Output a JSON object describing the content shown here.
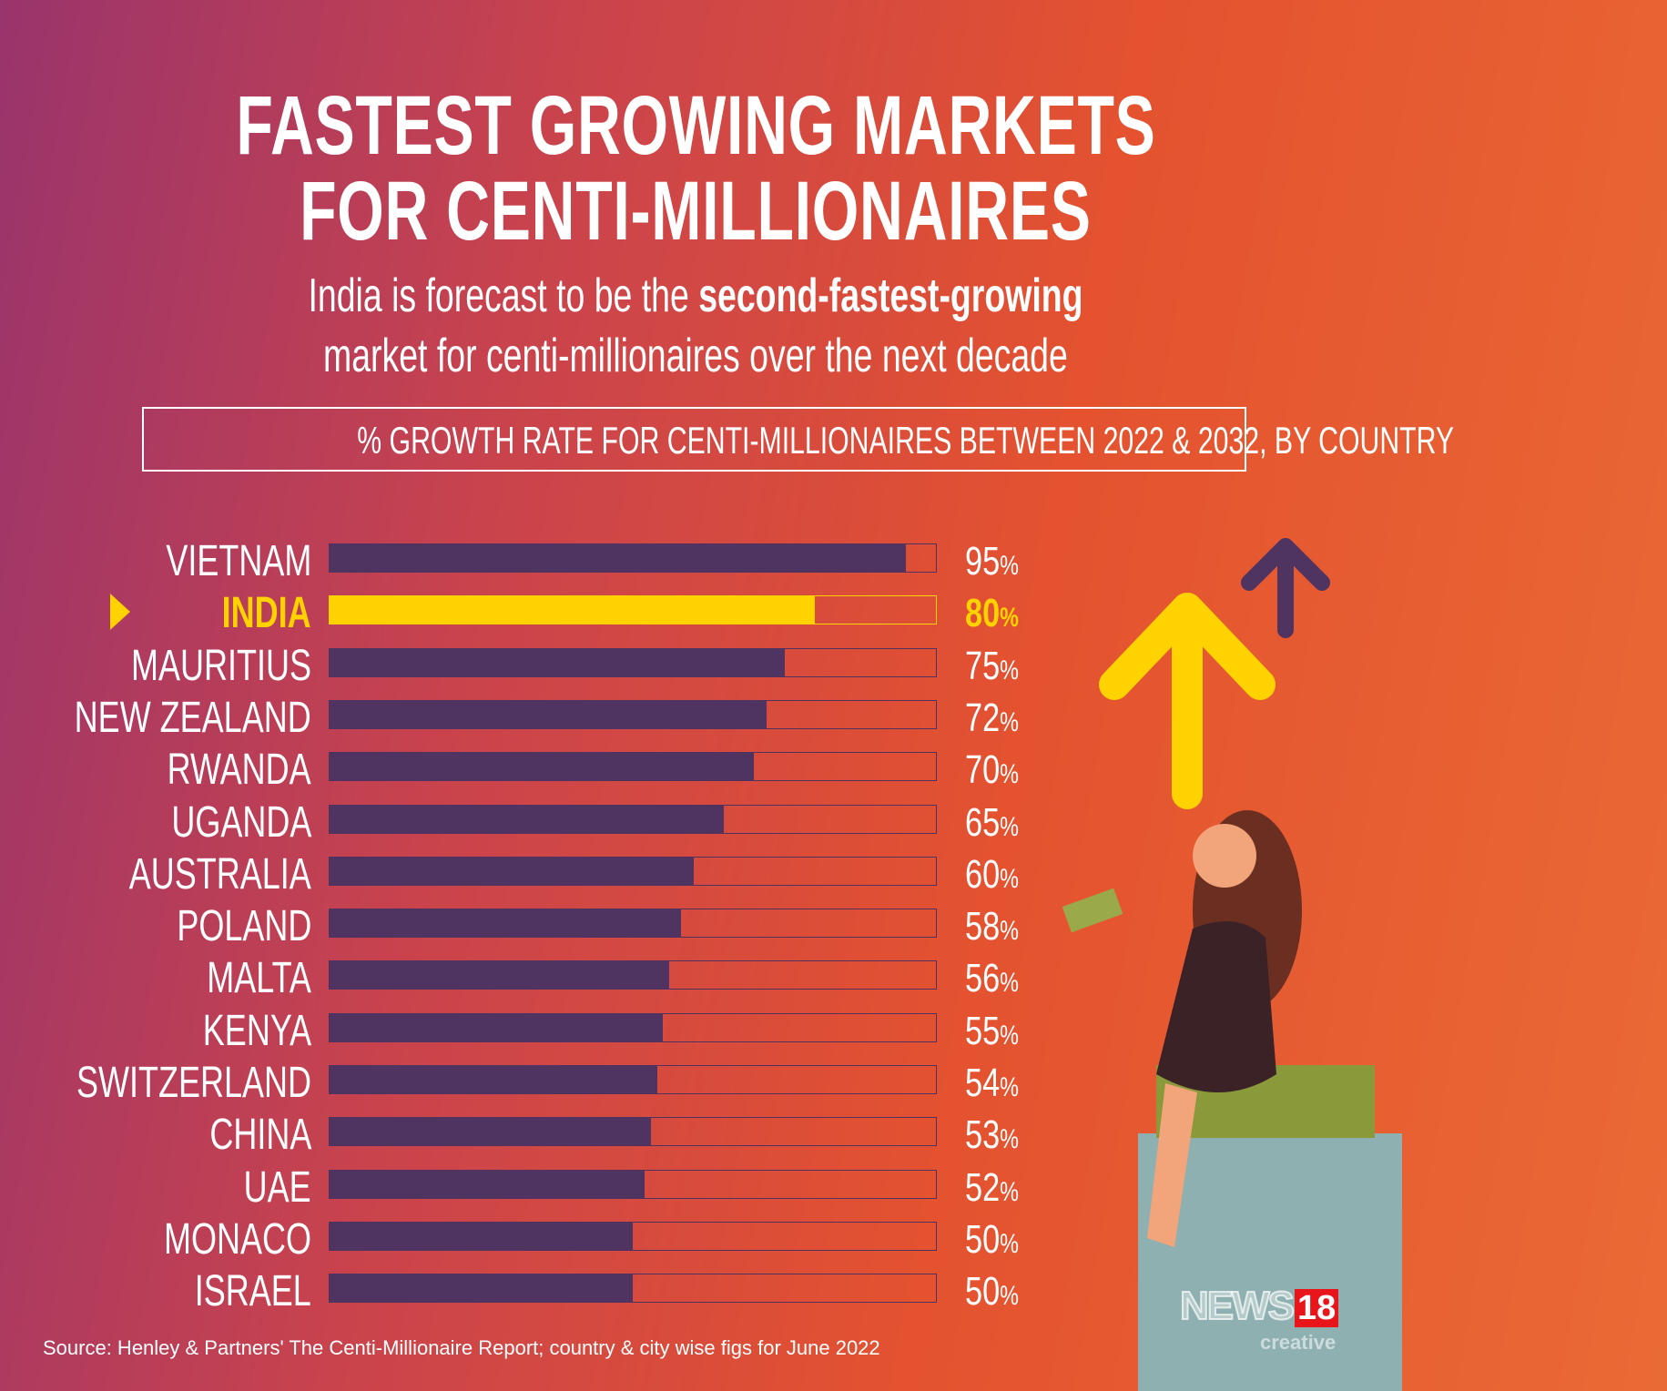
{
  "title": {
    "line1": "FASTEST GROWING MARKETS",
    "line2": "FOR CENTI-MILLIONAIRES"
  },
  "subtitle": {
    "pre": "India is forecast to be the ",
    "bold": "second-fastest-growing",
    "line2": "market for centi-millionaires over the next decade"
  },
  "colors": {
    "bar": "#4f3360",
    "highlight": "#ffd200",
    "background_start": "#9a346c",
    "background_end": "#ea6a35"
  },
  "chart_data": {
    "type": "bar",
    "orientation": "horizontal",
    "title": "% GROWTH RATE FOR CENTI-MILLIONAIRES BETWEEN 2022 & 2032, BY COUNTRY",
    "categories": [
      "VIETNAM",
      "INDIA",
      "MAURITIUS",
      "NEW ZEALAND",
      "RWANDA",
      "UGANDA",
      "AUSTRALIA",
      "POLAND",
      "MALTA",
      "KENYA",
      "SWITZERLAND",
      "CHINA",
      "UAE",
      "MONACO",
      "ISRAEL"
    ],
    "values": [
      95,
      80,
      75,
      72,
      70,
      65,
      60,
      58,
      56,
      55,
      54,
      53,
      52,
      50,
      50
    ],
    "value_suffix": "%",
    "highlight": "INDIA",
    "xlim": [
      0,
      100
    ]
  },
  "source": "Source: Henley & Partners' The Centi-Millionaire Report; country & city wise figs for June 2022",
  "logo": {
    "news": "NEWS",
    "num": "18",
    "sub": "creative"
  }
}
